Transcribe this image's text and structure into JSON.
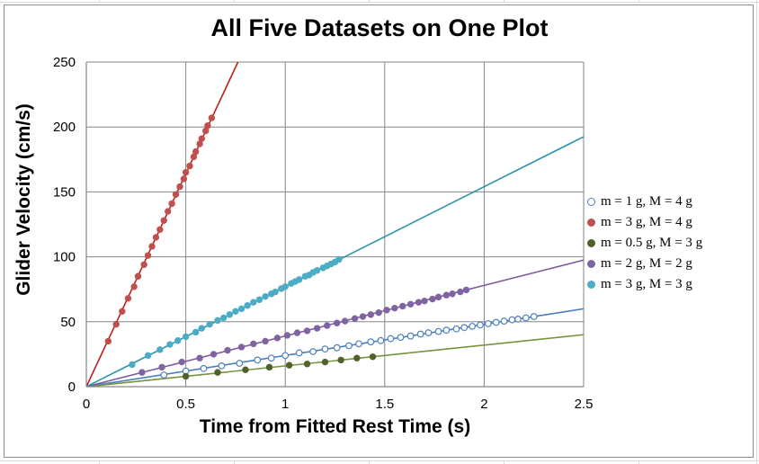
{
  "chart_data": {
    "type": "scatter",
    "title": "All Five Datasets on One Plot",
    "xlabel": "Time from Fitted Rest Time (s)",
    "ylabel": "Glider Velocity (cm/s)",
    "xlim": [
      0,
      2.5
    ],
    "ylim": [
      0,
      250
    ],
    "x_ticks": [
      "0",
      "0.5",
      "1",
      "1.5",
      "2",
      "2.5"
    ],
    "y_ticks": [
      "0",
      "50",
      "100",
      "150",
      "200",
      "250"
    ],
    "grid": true,
    "legend_position": "right",
    "series": [
      {
        "name": "m = 1 g, M = 4 g",
        "marker": "open-circle",
        "color": "#4f81bd",
        "fit_slope": 24,
        "x": [
          0.39,
          0.5,
          0.59,
          0.68,
          0.77,
          0.86,
          0.93,
          1.0,
          1.07,
          1.14,
          1.2,
          1.26,
          1.32,
          1.37,
          1.43,
          1.48,
          1.53,
          1.58,
          1.63,
          1.68,
          1.72,
          1.77,
          1.81,
          1.86,
          1.9,
          1.94,
          1.98,
          2.02,
          2.06,
          2.1,
          2.14,
          2.17,
          2.21,
          2.25
        ],
        "y": [
          9,
          12,
          14,
          16,
          18,
          20.5,
          22,
          24,
          26,
          27,
          29,
          30,
          31.5,
          33,
          34.5,
          35.5,
          37,
          38,
          39,
          40.5,
          41.5,
          42.5,
          43.5,
          44.5,
          45.5,
          46.5,
          47.5,
          48.5,
          49.5,
          50.5,
          51.5,
          52,
          53,
          54
        ]
      },
      {
        "name": "m = 3 g, M = 4 g",
        "marker": "filled-circle",
        "color": "#c0504d",
        "fit_slope": 328,
        "x": [
          0.11,
          0.15,
          0.18,
          0.21,
          0.24,
          0.26,
          0.29,
          0.31,
          0.33,
          0.35,
          0.37,
          0.39,
          0.41,
          0.43,
          0.45,
          0.47,
          0.49,
          0.5,
          0.52,
          0.54,
          0.55,
          0.57,
          0.58,
          0.6,
          0.61,
          0.63
        ],
        "y": [
          35,
          48,
          58,
          68,
          77,
          85,
          94,
          101,
          108,
          115,
          121,
          128,
          135,
          141,
          148,
          154,
          160,
          165,
          170,
          177,
          181,
          187,
          191,
          197,
          201,
          207
        ]
      },
      {
        "name": "m = 0.5 g, M = 3 g",
        "marker": "filled-circle",
        "color": "#4f6228",
        "fit_slope": 16,
        "x": [
          0.5,
          0.66,
          0.8,
          0.92,
          1.02,
          1.11,
          1.2,
          1.28,
          1.36,
          1.44
        ],
        "y": [
          8,
          11,
          13,
          15,
          16.5,
          17.5,
          19,
          20.5,
          22,
          23
        ]
      },
      {
        "name": "m = 2 g, M = 2 g",
        "marker": "filled-circle",
        "color": "#8064a2",
        "fit_slope": 39,
        "x": [
          0.28,
          0.38,
          0.48,
          0.57,
          0.64,
          0.71,
          0.78,
          0.84,
          0.9,
          0.96,
          1.01,
          1.06,
          1.11,
          1.16,
          1.21,
          1.26,
          1.3,
          1.35,
          1.39,
          1.43,
          1.47,
          1.51,
          1.55,
          1.59,
          1.63,
          1.67,
          1.7,
          1.74,
          1.77,
          1.81,
          1.84,
          1.88,
          1.91
        ],
        "y": [
          11,
          15,
          19,
          22,
          25,
          28,
          30.5,
          33,
          35,
          37.5,
          39.5,
          41.5,
          43,
          45,
          47,
          49,
          50.5,
          52.5,
          54,
          55.5,
          57,
          59,
          60.5,
          62,
          63.5,
          65,
          66,
          67.5,
          69,
          70.5,
          71.5,
          73,
          74.5
        ]
      },
      {
        "name": "m = 3 g, M = 3 g",
        "marker": "filled-circle",
        "color": "#4bacc6",
        "fit_slope": 77,
        "x": [
          0.23,
          0.31,
          0.37,
          0.42,
          0.46,
          0.5,
          0.55,
          0.58,
          0.62,
          0.66,
          0.69,
          0.72,
          0.75,
          0.78,
          0.81,
          0.84,
          0.87,
          0.9,
          0.93,
          0.95,
          0.98,
          1.0,
          1.03,
          1.05,
          1.07,
          1.1,
          1.12,
          1.14,
          1.16,
          1.19,
          1.21,
          1.23,
          1.25,
          1.27
        ],
        "y": [
          17,
          24,
          28.5,
          32.5,
          35.5,
          38.5,
          42,
          45,
          48,
          51,
          53,
          55.5,
          58,
          60,
          62.5,
          65,
          67,
          69.5,
          71.5,
          73,
          75.5,
          77,
          79.5,
          81,
          82.5,
          85,
          86,
          88,
          89.5,
          91.5,
          93,
          94.5,
          96,
          98
        ]
      }
    ]
  }
}
